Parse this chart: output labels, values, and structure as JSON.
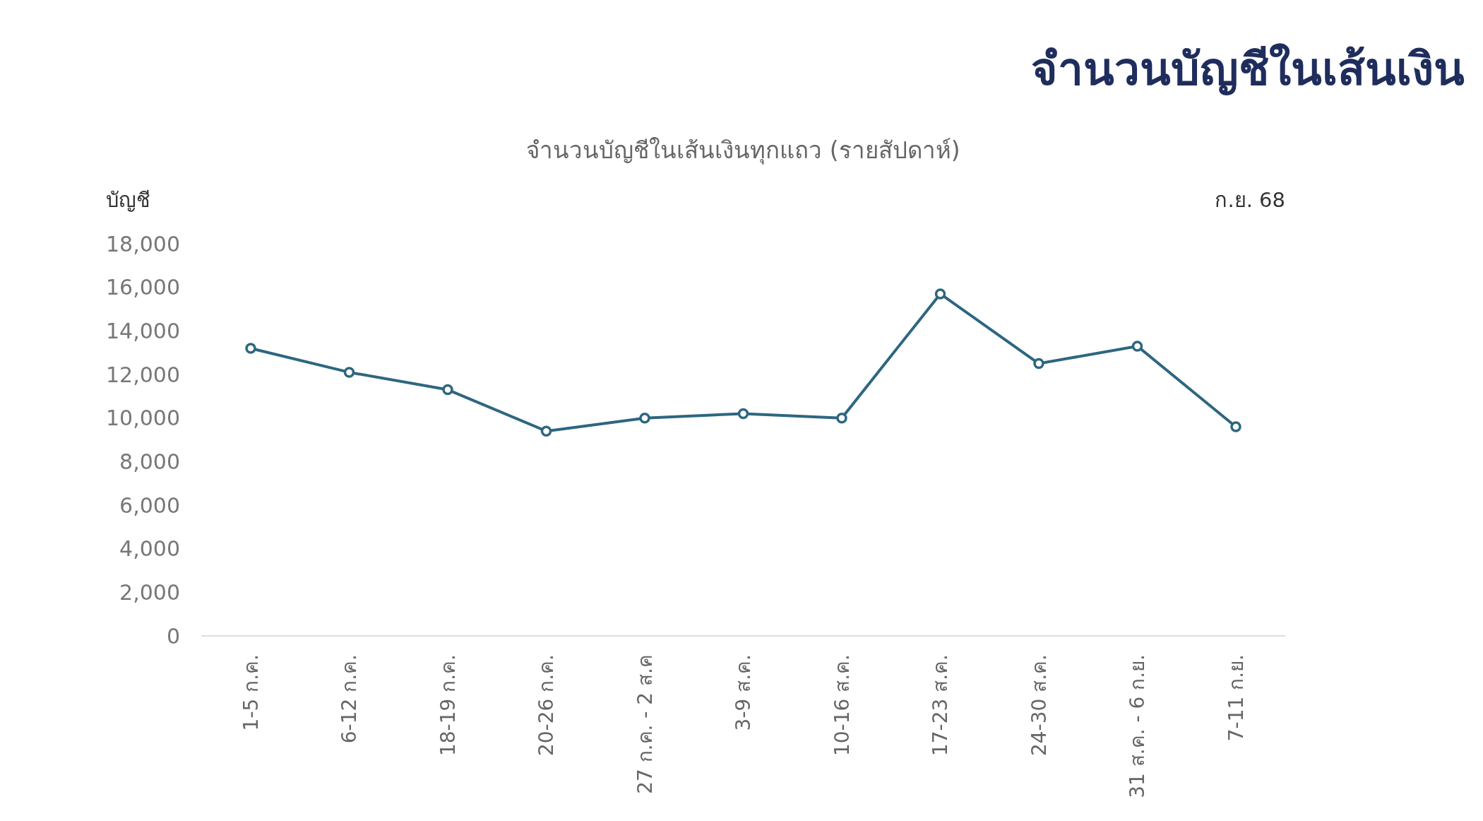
{
  "chart_data": {
    "type": "line",
    "title": "จำนวนบัญชีในเส้นเงิน",
    "subtitle": "จำนวนบัญชีในเส้นเงินทุกแถว (รายสัปดาห์)",
    "ylabel": "บัญชี",
    "annotations": [
      "ก.ย. 68"
    ],
    "categories": [
      "1-5 ก.ค.",
      "6-12 ก.ค.",
      "18-19 ก.ค.",
      "20-26 ก.ค.",
      "27 ก.ค. - 2 ส.ค",
      "3-9 ส.ค.",
      "10-16 ส.ค.",
      "17-23 ส.ค.",
      "24-30 ส.ค.",
      "31 ส.ค. - 6 ก.ย.",
      "7-11 ก.ย."
    ],
    "values": [
      13200,
      12100,
      11300,
      9400,
      10000,
      10200,
      10000,
      15700,
      12500,
      13300,
      9600
    ],
    "color": "#2e6680",
    "marker": "circle",
    "line_style": "solid",
    "ylim": [
      0,
      18000
    ],
    "yticks": [
      0,
      {
        "value": 2000,
        "label": "2,000"
      },
      {
        "value": 4000,
        "label": "4,000"
      },
      {
        "value": 6000,
        "label": "6,000"
      },
      {
        "value": 8000,
        "label": "8,000"
      },
      {
        "value": 10000,
        "label": "10,000"
      },
      {
        "value": 12000,
        "label": "12,000"
      },
      {
        "value": 14000,
        "label": "14,000"
      },
      {
        "value": 16000,
        "label": "16,000"
      },
      {
        "value": 18000,
        "label": "18,000"
      }
    ]
  }
}
